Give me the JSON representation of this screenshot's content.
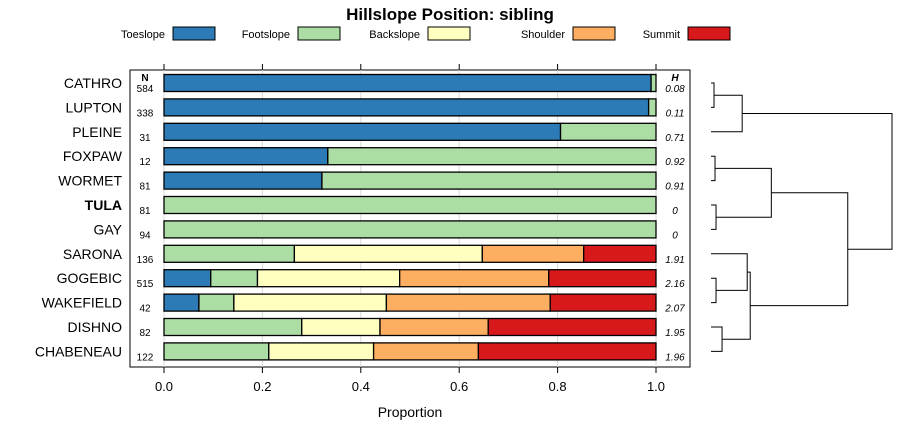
{
  "chart_data": {
    "type": "bar",
    "orientation": "horizontal-stacked",
    "title": "Hillslope Position: sibling",
    "xlabel": "Proportion",
    "xlim": [
      0,
      1
    ],
    "x_ticks": [
      "0.0",
      "0.2",
      "0.4",
      "0.6",
      "0.8",
      "1.0"
    ],
    "n_header": "N",
    "h_header": "H",
    "legend_placement": "top",
    "grid": true,
    "series": [
      {
        "name": "Toeslope",
        "color": "#2c7bb6"
      },
      {
        "name": "Footslope",
        "color": "#abdda4"
      },
      {
        "name": "Backslope",
        "color": "#ffffbf"
      },
      {
        "name": "Shoulder",
        "color": "#fdae61"
      },
      {
        "name": "Summit",
        "color": "#d7191c"
      }
    ],
    "rows": [
      {
        "label": "CATHRO",
        "n": "584",
        "h": "0.08",
        "bold": false,
        "values": [
          0.99,
          0.01,
          0,
          0,
          0
        ]
      },
      {
        "label": "LUPTON",
        "n": "338",
        "h": "0.11",
        "bold": false,
        "values": [
          0.985,
          0.015,
          0,
          0,
          0
        ]
      },
      {
        "label": "PLEINE",
        "n": "31",
        "h": "0.71",
        "bold": false,
        "values": [
          0.806,
          0.194,
          0,
          0,
          0
        ]
      },
      {
        "label": "FOXPAW",
        "n": "12",
        "h": "0.92",
        "bold": false,
        "values": [
          0.333,
          0.667,
          0,
          0,
          0
        ]
      },
      {
        "label": "WORMET",
        "n": "81",
        "h": "0.91",
        "bold": false,
        "values": [
          0.321,
          0.679,
          0,
          0,
          0
        ]
      },
      {
        "label": "TULA",
        "n": "81",
        "h": "0",
        "bold": true,
        "values": [
          0,
          1,
          0,
          0,
          0
        ]
      },
      {
        "label": "GAY",
        "n": "94",
        "h": "0",
        "bold": false,
        "values": [
          0,
          1,
          0,
          0,
          0
        ]
      },
      {
        "label": "SARONA",
        "n": "136",
        "h": "1.91",
        "bold": false,
        "values": [
          0,
          0.265,
          0.382,
          0.206,
          0.147
        ]
      },
      {
        "label": "GOGEBIC",
        "n": "515",
        "h": "2.16",
        "bold": false,
        "values": [
          0.095,
          0.095,
          0.289,
          0.303,
          0.218
        ]
      },
      {
        "label": "WAKEFIELD",
        "n": "42",
        "h": "2.07",
        "bold": false,
        "values": [
          0.071,
          0.071,
          0.31,
          0.333,
          0.215
        ]
      },
      {
        "label": "DISHNO",
        "n": "82",
        "h": "1.95",
        "bold": false,
        "values": [
          0,
          0.28,
          0.159,
          0.22,
          0.341
        ]
      },
      {
        "label": "CHABENEAU",
        "n": "122",
        "h": "1.96",
        "bold": false,
        "values": [
          0,
          0.213,
          0.213,
          0.213,
          0.361
        ]
      }
    ],
    "dendrogram": {
      "leaf_order": [
        "CATHRO",
        "LUPTON",
        "PLEINE",
        "FOXPAW",
        "WORMET",
        "TULA",
        "GAY",
        "SARONA",
        "GOGEBIC",
        "WAKEFIELD",
        "DISHNO",
        "CHABENEAU"
      ],
      "merges": [
        {
          "a": "CATHRO",
          "b": "LUPTON",
          "height": 0.03
        },
        {
          "a": "#0",
          "b": "PLEINE",
          "height": 0.31
        },
        {
          "a": "FOXPAW",
          "b": "WORMET",
          "height": 0.04
        },
        {
          "a": "TULA",
          "b": "GAY",
          "height": 0.05
        },
        {
          "a": "#2",
          "b": "#3",
          "height": 0.6
        },
        {
          "a": "GOGEBIC",
          "b": "WAKEFIELD",
          "height": 0.05
        },
        {
          "a": "SARONA",
          "b": "#5",
          "height": 0.36
        },
        {
          "a": "DISHNO",
          "b": "CHABENEAU",
          "height": 0.11
        },
        {
          "a": "#6",
          "b": "#7",
          "height": 0.39
        },
        {
          "a": "#4",
          "b": "#8",
          "height": 1.36
        },
        {
          "a": "#1",
          "b": "#9",
          "height": 1.8
        }
      ]
    }
  }
}
